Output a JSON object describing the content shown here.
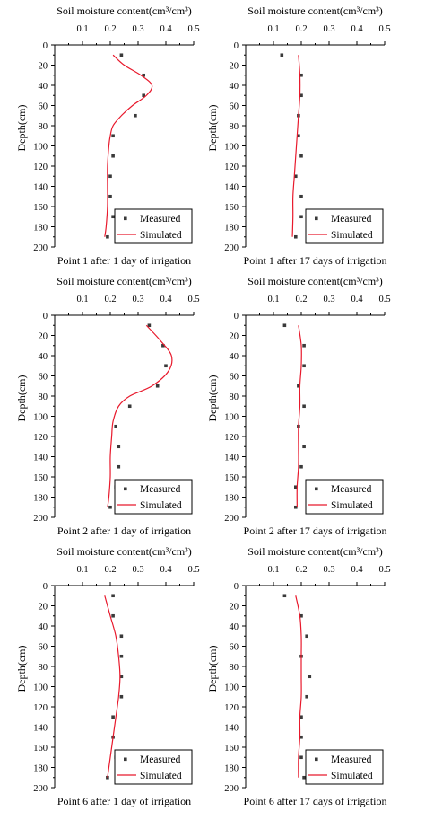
{
  "figure": {
    "colors": {
      "measured": "#3a3a3a",
      "simulated": "#e8192c",
      "axis": "#000000"
    }
  },
  "chart_data": [
    {
      "type": "scatter",
      "caption": "Point 1 after 1 day of irrigation",
      "xlabel": "Soil moisture content(cm³/cm³)",
      "ylabel": "Depth(cm)",
      "xlim": [
        0,
        0.5
      ],
      "ylim": [
        0,
        200
      ],
      "y_inverted": true,
      "x_axis_position": "top",
      "xticks": [
        "0.1",
        "0.2",
        "0.3",
        "0.4",
        "0.5"
      ],
      "yticks": [
        "0",
        "20",
        "40",
        "60",
        "80",
        "100",
        "120",
        "140",
        "160",
        "180",
        "200"
      ],
      "legend": {
        "position": "bottom-right",
        "entries": [
          "Measured",
          "Simulated"
        ]
      },
      "series": [
        {
          "name": "Measured",
          "kind": "scatter",
          "points": [
            [
              0.24,
              10
            ],
            [
              0.32,
              30
            ],
            [
              0.32,
              50
            ],
            [
              0.29,
              70
            ],
            [
              0.21,
              90
            ],
            [
              0.21,
              110
            ],
            [
              0.2,
              130
            ],
            [
              0.2,
              150
            ],
            [
              0.21,
              170
            ],
            [
              0.19,
              190
            ]
          ]
        },
        {
          "name": "Simulated",
          "kind": "line",
          "points": [
            [
              0.21,
              10
            ],
            [
              0.25,
              20
            ],
            [
              0.31,
              30
            ],
            [
              0.35,
              40
            ],
            [
              0.33,
              50
            ],
            [
              0.28,
              60
            ],
            [
              0.24,
              70
            ],
            [
              0.21,
              80
            ],
            [
              0.2,
              90
            ],
            [
              0.195,
              100
            ],
            [
              0.19,
              120
            ],
            [
              0.19,
              140
            ],
            [
              0.19,
              160
            ],
            [
              0.185,
              180
            ],
            [
              0.18,
              190
            ]
          ]
        }
      ]
    },
    {
      "type": "scatter",
      "caption": "Point 1 after 17 days of irrigation",
      "xlabel": "Soil moisture content(cm³/cm³)",
      "ylabel": "Depth(cm)",
      "xlim": [
        0,
        0.5
      ],
      "ylim": [
        0,
        200
      ],
      "y_inverted": true,
      "x_axis_position": "top",
      "xticks": [
        "0.1",
        "0.2",
        "0.3",
        "0.4",
        "0.5"
      ],
      "yticks": [
        "0",
        "20",
        "40",
        "60",
        "80",
        "100",
        "120",
        "140",
        "160",
        "180",
        "200"
      ],
      "legend": {
        "position": "bottom-right",
        "entries": [
          "Measured",
          "Simulated"
        ]
      },
      "series": [
        {
          "name": "Measured",
          "kind": "scatter",
          "points": [
            [
              0.13,
              10
            ],
            [
              0.2,
              30
            ],
            [
              0.2,
              50
            ],
            [
              0.19,
              70
            ],
            [
              0.19,
              90
            ],
            [
              0.2,
              110
            ],
            [
              0.18,
              130
            ],
            [
              0.2,
              150
            ],
            [
              0.2,
              170
            ],
            [
              0.18,
              190
            ]
          ]
        },
        {
          "name": "Simulated",
          "kind": "line",
          "points": [
            [
              0.19,
              10
            ],
            [
              0.195,
              30
            ],
            [
              0.195,
              50
            ],
            [
              0.19,
              70
            ],
            [
              0.185,
              90
            ],
            [
              0.18,
              110
            ],
            [
              0.175,
              130
            ],
            [
              0.17,
              150
            ],
            [
              0.17,
              170
            ],
            [
              0.168,
              190
            ]
          ]
        }
      ]
    },
    {
      "type": "scatter",
      "caption": "Point 2 after 1 day of irrigation",
      "xlabel": "Soil moisture content(cm³/cm³)",
      "ylabel": "Depth(cm)",
      "xlim": [
        0,
        0.5
      ],
      "ylim": [
        0,
        200
      ],
      "y_inverted": true,
      "x_axis_position": "top",
      "xticks": [
        "0.1",
        "0.2",
        "0.3",
        "0.4",
        "0.5"
      ],
      "yticks": [
        "0",
        "20",
        "40",
        "60",
        "80",
        "100",
        "120",
        "140",
        "160",
        "180",
        "200"
      ],
      "legend": {
        "position": "bottom-right",
        "entries": [
          "Measured",
          "Simulated"
        ]
      },
      "series": [
        {
          "name": "Measured",
          "kind": "scatter",
          "points": [
            [
              0.34,
              10
            ],
            [
              0.39,
              30
            ],
            [
              0.4,
              50
            ],
            [
              0.37,
              70
            ],
            [
              0.27,
              90
            ],
            [
              0.22,
              110
            ],
            [
              0.23,
              130
            ],
            [
              0.23,
              150
            ],
            [
              0.22,
              170
            ],
            [
              0.2,
              190
            ]
          ]
        },
        {
          "name": "Simulated",
          "kind": "line",
          "points": [
            [
              0.33,
              10
            ],
            [
              0.38,
              25
            ],
            [
              0.42,
              40
            ],
            [
              0.41,
              55
            ],
            [
              0.35,
              70
            ],
            [
              0.27,
              80
            ],
            [
              0.23,
              90
            ],
            [
              0.21,
              105
            ],
            [
              0.205,
              120
            ],
            [
              0.2,
              140
            ],
            [
              0.2,
              160
            ],
            [
              0.195,
              180
            ],
            [
              0.19,
              190
            ]
          ]
        }
      ]
    },
    {
      "type": "scatter",
      "caption": "Point 2 after 17 days of irrigation",
      "xlabel": "Soil moisture content(cm³/cm³)",
      "ylabel": "Depth(cm)",
      "xlim": [
        0,
        0.5
      ],
      "ylim": [
        0,
        200
      ],
      "y_inverted": true,
      "x_axis_position": "top",
      "xticks": [
        "0.1",
        "0.2",
        "0.3",
        "0.4",
        "0.5"
      ],
      "yticks": [
        "0",
        "20",
        "40",
        "60",
        "80",
        "100",
        "120",
        "140",
        "160",
        "180",
        "200"
      ],
      "legend": {
        "position": "bottom-right",
        "entries": [
          "Measured",
          "Simulated"
        ]
      },
      "series": [
        {
          "name": "Measured",
          "kind": "scatter",
          "points": [
            [
              0.14,
              10
            ],
            [
              0.21,
              30
            ],
            [
              0.21,
              50
            ],
            [
              0.19,
              70
            ],
            [
              0.21,
              90
            ],
            [
              0.19,
              110
            ],
            [
              0.21,
              130
            ],
            [
              0.2,
              150
            ],
            [
              0.18,
              170
            ],
            [
              0.18,
              190
            ]
          ]
        },
        {
          "name": "Simulated",
          "kind": "line",
          "points": [
            [
              0.19,
              10
            ],
            [
              0.2,
              30
            ],
            [
              0.2,
              50
            ],
            [
              0.195,
              70
            ],
            [
              0.195,
              90
            ],
            [
              0.19,
              110
            ],
            [
              0.19,
              130
            ],
            [
              0.19,
              150
            ],
            [
              0.185,
              170
            ],
            [
              0.185,
              190
            ]
          ]
        }
      ]
    },
    {
      "type": "scatter",
      "caption": "Point 6 after 1 day of irrigation",
      "xlabel": "Soil moisture content(cm³/cm³)",
      "ylabel": "Depth(cm)",
      "xlim": [
        0,
        0.5
      ],
      "ylim": [
        0,
        200
      ],
      "y_inverted": true,
      "x_axis_position": "top",
      "xticks": [
        "0.1",
        "0.2",
        "0.3",
        "0.4",
        "0.5"
      ],
      "yticks": [
        "0",
        "20",
        "40",
        "60",
        "80",
        "100",
        "120",
        "140",
        "160",
        "180",
        "200"
      ],
      "legend": {
        "position": "bottom-right",
        "entries": [
          "Measured",
          "Simulated"
        ]
      },
      "series": [
        {
          "name": "Measured",
          "kind": "scatter",
          "points": [
            [
              0.21,
              10
            ],
            [
              0.21,
              30
            ],
            [
              0.24,
              50
            ],
            [
              0.24,
              70
            ],
            [
              0.24,
              90
            ],
            [
              0.24,
              110
            ],
            [
              0.21,
              130
            ],
            [
              0.21,
              150
            ],
            [
              0.22,
              170
            ],
            [
              0.19,
              190
            ]
          ]
        },
        {
          "name": "Simulated",
          "kind": "line",
          "points": [
            [
              0.18,
              10
            ],
            [
              0.2,
              30
            ],
            [
              0.22,
              50
            ],
            [
              0.23,
              70
            ],
            [
              0.235,
              90
            ],
            [
              0.23,
              110
            ],
            [
              0.22,
              130
            ],
            [
              0.21,
              150
            ],
            [
              0.2,
              170
            ],
            [
              0.19,
              190
            ]
          ]
        }
      ]
    },
    {
      "type": "scatter",
      "caption": "Point 6 after 17 days of irrigation",
      "xlabel": "Soil moisture content(cm³/cm³)",
      "ylabel": "Depth(cm)",
      "xlim": [
        0,
        0.5
      ],
      "ylim": [
        0,
        200
      ],
      "y_inverted": true,
      "x_axis_position": "top",
      "xticks": [
        "0.1",
        "0.2",
        "0.3",
        "0.4",
        "0.5"
      ],
      "yticks": [
        "0",
        "20",
        "40",
        "60",
        "80",
        "100",
        "120",
        "140",
        "160",
        "180",
        "200"
      ],
      "legend": {
        "position": "bottom-right",
        "entries": [
          "Measured",
          "Simulated"
        ]
      },
      "series": [
        {
          "name": "Measured",
          "kind": "scatter",
          "points": [
            [
              0.14,
              10
            ],
            [
              0.2,
              30
            ],
            [
              0.22,
              50
            ],
            [
              0.2,
              70
            ],
            [
              0.23,
              90
            ],
            [
              0.22,
              110
            ],
            [
              0.2,
              130
            ],
            [
              0.2,
              150
            ],
            [
              0.2,
              170
            ],
            [
              0.21,
              190
            ]
          ]
        },
        {
          "name": "Simulated",
          "kind": "line",
          "points": [
            [
              0.18,
              10
            ],
            [
              0.195,
              30
            ],
            [
              0.2,
              50
            ],
            [
              0.2,
              70
            ],
            [
              0.2,
              90
            ],
            [
              0.2,
              110
            ],
            [
              0.195,
              130
            ],
            [
              0.195,
              150
            ],
            [
              0.19,
              170
            ],
            [
              0.19,
              190
            ]
          ]
        }
      ]
    }
  ]
}
